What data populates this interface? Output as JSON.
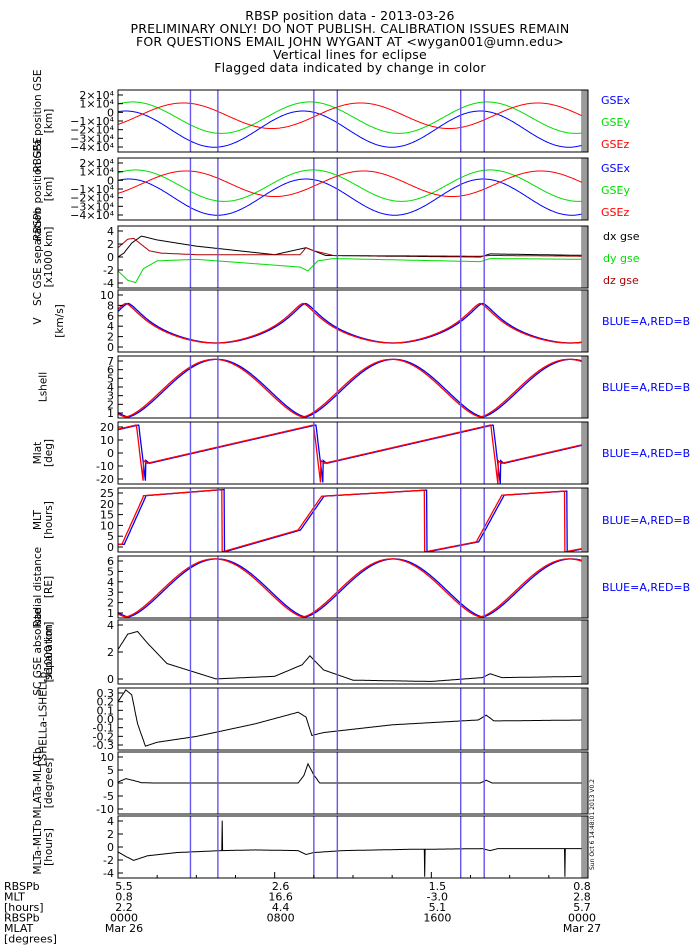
{
  "header": {
    "title": "RBSP position data - 2013-03-26",
    "line2": "PRELIMINARY ONLY! DO NOT PUBLISH. CALIBRATION ISSUES REMAIN",
    "line3": "FOR QUESTIONS EMAIL JOHN WYGANT AT <wygan001@umn.edu>",
    "line4": "Vertical lines for eclipse",
    "line5": "Flagged data indicated by change in color"
  },
  "colors": {
    "blue": "#0000ff",
    "green": "#00dd00",
    "red": "#ff0000",
    "black": "#000000",
    "darkred": "#aa0000",
    "eclipse": "#6655ee"
  },
  "side_text": "Sun Oct  6 14:48:01 2013 V0.2",
  "eclipse_hours": [
    3.7,
    5.1,
    10.0,
    11.2,
    17.5,
    18.7,
    23.7
  ],
  "footer": {
    "row_labels": [
      "RBSPb",
      "MLT",
      "[hours]",
      "RBSPb",
      "MLAT",
      "[degrees]"
    ],
    "columns": [
      {
        "mlt_upper": "5.5",
        "mlt_lower": "0.8",
        "mlat_upper": "2.2",
        "time": "0000",
        "date": "Mar 26"
      },
      {
        "mlt_upper": "2.6",
        "mlt_lower": "16.6",
        "mlat_upper": "4.4",
        "time": "0800",
        "date": ""
      },
      {
        "mlt_upper": "1.5",
        "mlt_lower": "-3.0",
        "mlat_upper": "5.1",
        "time": "1600",
        "date": ""
      },
      {
        "mlt_upper": "0.8",
        "mlt_lower": "2.8",
        "mlat_upper": "5.7",
        "time": "0000",
        "date": "Mar 27"
      }
    ]
  },
  "chart_data": [
    {
      "type": "line",
      "ylabel": "RBSPa position GSE [km]",
      "ylim": [
        -40000,
        25000
      ],
      "ticks": [
        "2×10⁴",
        "1×10⁴",
        "0",
        "−1×10⁴",
        "−2×10⁴",
        "−3×10⁴",
        "−4×10⁴"
      ],
      "legend": [
        "GSEx",
        "GSEy",
        "GSEz"
      ]
    },
    {
      "type": "line",
      "ylabel": "RBSPb position GSE [km]",
      "ylim": [
        -40000,
        25000
      ],
      "ticks": [
        "2×10⁴",
        "1×10⁴",
        "0",
        "−1×10⁴",
        "−2×10⁴",
        "−3×10⁴",
        "−4×10⁴"
      ],
      "legend": [
        "GSEx",
        "GSEy",
        "GSEz"
      ]
    },
    {
      "type": "line",
      "ylabel": "SC GSE separation [x1000 km]",
      "ylim": [
        -4,
        4
      ],
      "ticks": [
        "4",
        "2",
        "0",
        "-2",
        "-4"
      ],
      "legend": [
        "dx gse",
        "dy gse",
        "dz gse"
      ],
      "series": [
        {
          "name": "dx gse",
          "x": [
            0,
            0.3,
            0.7,
            1.2,
            2,
            4,
            8,
            9.6,
            10.2,
            10.6,
            14,
            18.5,
            19,
            24
          ],
          "values": [
            0,
            0.5,
            1.8,
            2.7,
            2.2,
            1.4,
            0.3,
            1.2,
            0.6,
            0.2,
            0.1,
            0,
            0.4,
            0.2
          ]
        },
        {
          "name": "dy gse",
          "x": [
            0,
            0.5,
            0.9,
            1.3,
            2,
            4,
            9.3,
            9.7,
            10.2,
            11,
            18.5,
            19,
            24
          ],
          "values": [
            -1.8,
            -3,
            -3.3,
            -1.5,
            -0.5,
            -0.3,
            -1.3,
            -1.8,
            -0.5,
            -0.2,
            -0.6,
            -0.2,
            -0.3
          ]
        },
        {
          "name": "dz gse",
          "x": [
            0,
            0.5,
            0.8,
            1.1,
            1.6,
            2.2,
            4,
            9.3,
            9.6,
            10,
            11,
            18.5,
            19,
            24
          ],
          "values": [
            1.2,
            2.3,
            2.4,
            1.8,
            0.8,
            0.5,
            0.3,
            0.3,
            1.2,
            0.8,
            0.2,
            0.1,
            0.2,
            0.1
          ]
        }
      ]
    },
    {
      "type": "line",
      "ylabel": "|V| [km/s]",
      "ylim": [
        0,
        10
      ],
      "ticks": [
        "10",
        "8",
        "6",
        "4",
        "2",
        "0"
      ],
      "legend": [
        "BLUE=A,RED=B"
      ]
    },
    {
      "type": "line",
      "ylabel": "Lshell",
      "ylim": [
        1,
        7.3
      ],
      "ticks": [
        "7",
        "6",
        "5",
        "4",
        "3",
        "2",
        "1"
      ],
      "legend": [
        "BLUE=A,RED=B"
      ]
    },
    {
      "type": "line",
      "ylabel": "Mlat [deg]",
      "ylim": [
        -20,
        22
      ],
      "ticks": [
        "20",
        "10",
        "0",
        "-10",
        "-20"
      ],
      "legend": [
        "BLUE=A,RED=B"
      ]
    },
    {
      "type": "line",
      "ylabel": "MLT [hours]",
      "ylim": [
        0,
        25
      ],
      "ticks": [
        "25",
        "20",
        "15",
        "10",
        "5",
        "0"
      ],
      "legend": [
        "BLUE=A,RED=B"
      ]
    },
    {
      "type": "line",
      "ylabel": "Radial distance [RE]",
      "ylim": [
        1,
        6.3
      ],
      "ticks": [
        "6",
        "5",
        "4",
        "3",
        "2",
        "1"
      ],
      "legend": [
        "BLUE=A,RED=B"
      ]
    },
    {
      "type": "line",
      "ylabel": "SC GSE absolute separation [x1000 km]",
      "ylim": [
        0,
        5
      ],
      "ticks": [
        "4",
        "2",
        "0"
      ],
      "series": [
        {
          "name": "",
          "x": [
            0,
            0.5,
            1.0,
            1.5,
            2.5,
            5,
            8,
            9.4,
            9.8,
            10.5,
            12,
            16,
            18.6,
            19,
            19.6,
            24
          ],
          "values": [
            2.7,
            3.9,
            4.1,
            3.2,
            1.6,
            0.4,
            0.6,
            1.5,
            2.2,
            1.1,
            0.3,
            0.2,
            0.5,
            0.8,
            0.5,
            0.6
          ]
        }
      ]
    },
    {
      "type": "line",
      "ylabel": "LSHELLa-LSHELLb",
      "ylim": [
        -0.32,
        0.32
      ],
      "ticks": [
        "0.3",
        "0.2",
        "0.1",
        "0.0",
        "-0.1",
        "-0.2",
        "-0.3"
      ],
      "series": [
        {
          "name": "",
          "x": [
            0,
            0.4,
            0.7,
            1.0,
            1.4,
            2,
            4,
            7,
            9.2,
            9.6,
            9.9,
            10.5,
            14,
            18.4,
            18.8,
            19.2,
            24
          ],
          "values": [
            0.18,
            0.3,
            0.25,
            -0.05,
            -0.28,
            -0.24,
            -0.18,
            -0.05,
            0.07,
            0.02,
            -0.17,
            -0.14,
            -0.06,
            -0.01,
            0.04,
            -0.02,
            -0.01
          ]
        }
      ]
    },
    {
      "type": "line",
      "ylabel": "MLATa-MLATb [degrees]",
      "ylim": [
        -10,
        10
      ],
      "ticks": [
        "10",
        "5",
        "0",
        "-5",
        "-10"
      ],
      "series": [
        {
          "name": "",
          "x": [
            0,
            0.4,
            0.8,
            1.2,
            1.8,
            9.2,
            9.5,
            9.7,
            10.0,
            10.3,
            18.5,
            18.8,
            19.1,
            24
          ],
          "values": [
            0.3,
            1.4,
            0.8,
            0.1,
            0,
            0,
            2.5,
            6.2,
            2.6,
            0,
            0,
            0.9,
            0,
            0
          ]
        }
      ]
    },
    {
      "type": "line",
      "ylabel": "MLTa-MLTb [hours]",
      "ylim": [
        -4.5,
        5
      ],
      "ticks": [
        "4",
        "2",
        "0",
        "-2",
        "-4"
      ],
      "series": [
        {
          "name": "",
          "x": [
            0,
            0.4,
            0.8,
            1.5,
            3,
            5.3,
            5.31,
            5.33,
            5.34,
            7,
            9.2,
            9.6,
            10,
            11.5,
            15,
            15.64,
            15.65,
            15.67,
            15.68,
            18.6,
            19,
            19.4,
            22.8,
            22.81,
            22.83,
            22.84,
            24
          ],
          "values": [
            -0.5,
            -1.2,
            -1.8,
            -1.1,
            -0.6,
            -0.3,
            4.3,
            4.3,
            -0.3,
            -0.2,
            -0.3,
            -0.9,
            -0.6,
            -0.3,
            -0.1,
            -0.1,
            -4.3,
            -4.3,
            -0.1,
            0,
            -0.3,
            0,
            0,
            -4.3,
            -4.3,
            0,
            0
          ]
        }
      ]
    }
  ]
}
